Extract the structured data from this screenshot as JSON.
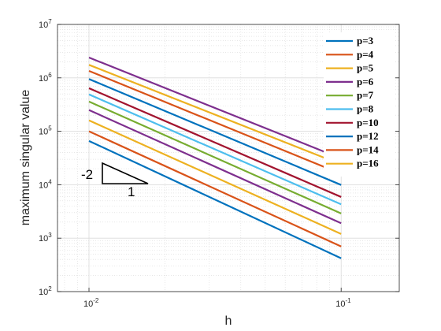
{
  "chart_data": {
    "type": "line",
    "xlabel": "h",
    "ylabel": "maximum singular value",
    "xscale": "log",
    "yscale": "log",
    "xlim": [
      0.0075,
      0.17
    ],
    "ylim": [
      100,
      10000000
    ],
    "x_ticks": [
      {
        "base": "10",
        "exp": "-2"
      },
      {
        "base": "10",
        "exp": "-1"
      }
    ],
    "y_ticks": [
      {
        "base": "10",
        "exp": "2"
      },
      {
        "base": "10",
        "exp": "3"
      },
      {
        "base": "10",
        "exp": "4"
      },
      {
        "base": "10",
        "exp": "5"
      },
      {
        "base": "10",
        "exp": "6"
      },
      {
        "base": "10",
        "exp": "7"
      }
    ],
    "grid": true,
    "legend_position": "top-right",
    "x": [
      0.01,
      0.1
    ],
    "series": [
      {
        "name": "p=3",
        "color": "#0072BD",
        "values": [
          66000,
          420
        ]
      },
      {
        "name": "p=4",
        "color": "#D95319",
        "values": [
          100000,
          700
        ]
      },
      {
        "name": "p=5",
        "color": "#EDB120",
        "values": [
          160000,
          1200
        ]
      },
      {
        "name": "p=6",
        "color": "#7E2F8E",
        "values": [
          250000,
          1900
        ]
      },
      {
        "name": "p=7",
        "color": "#77AC30",
        "values": [
          360000,
          2900
        ]
      },
      {
        "name": "p=8",
        "color": "#4DBEEE",
        "values": [
          490000,
          4300
        ]
      },
      {
        "name": "p=10",
        "color": "#A2142F",
        "values": [
          640000,
          5900
        ]
      },
      {
        "name": "p=12",
        "color": "#0072BD",
        "values": [
          950000,
          9900
        ]
      },
      {
        "name": "p=14",
        "color": "#D95319",
        "values": [
          1350000,
          16000
        ]
      },
      {
        "name": "p=16",
        "color": "#EDB120",
        "values": [
          1750000,
          24000
        ]
      },
      {
        "name": "",
        "color": "#7E2F8E",
        "values": [
          2400000,
          31000
        ]
      }
    ],
    "slope_triangle": {
      "slope_label": "-2",
      "run_label": "1"
    }
  }
}
